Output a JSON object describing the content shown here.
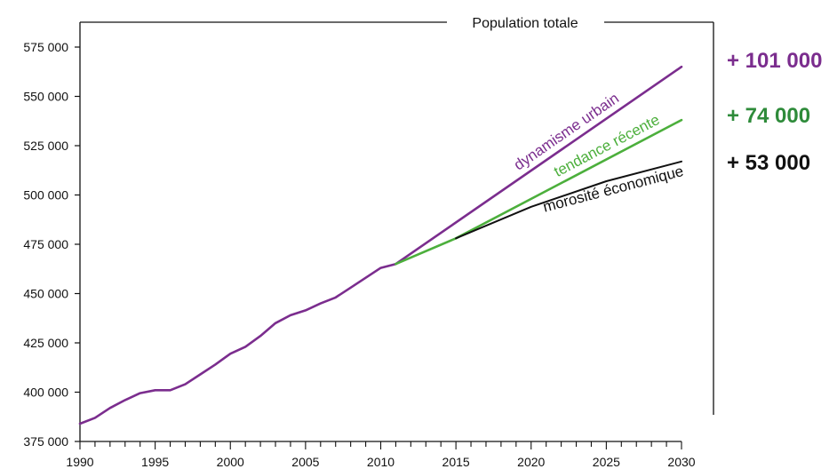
{
  "chart_data": {
    "type": "line",
    "title": "Population totale",
    "xlabel": "",
    "ylabel": "",
    "xlim": [
      1990,
      2030
    ],
    "ylim": [
      375000,
      575000
    ],
    "x_ticks": [
      "1990",
      "1995",
      "2000",
      "2005",
      "2010",
      "2015",
      "2020",
      "2025",
      "2030"
    ],
    "y_ticks": [
      "375 000",
      "400 000",
      "425 000",
      "450 000",
      "475 000",
      "500 000",
      "525 000",
      "550 000",
      "575 000"
    ],
    "x_tick_values": [
      1990,
      1995,
      2000,
      2005,
      2010,
      2015,
      2020,
      2025,
      2030
    ],
    "y_tick_values": [
      375000,
      400000,
      425000,
      450000,
      475000,
      500000,
      525000,
      550000,
      575000
    ],
    "grid": false,
    "series": [
      {
        "name": "",
        "color": "#7b2d8e",
        "x": [
          1990,
          1991,
          1992,
          1993,
          1994,
          1995,
          1996,
          1997,
          1998,
          1999,
          2000,
          2001,
          2002,
          2003,
          2004,
          2005,
          2006,
          2007,
          2008,
          2009,
          2010,
          2011
        ],
        "y": [
          384000,
          387000,
          392000,
          396000,
          399500,
          401000,
          401000,
          404000,
          409000,
          414000,
          419500,
          423000,
          428500,
          435000,
          439000,
          441500,
          445000,
          448000,
          453000,
          458000,
          463000,
          465000
        ]
      },
      {
        "name": "dynamisme urbain",
        "color": "#7b2d8e",
        "x": [
          2011,
          2030
        ],
        "y": [
          465000,
          565000
        ]
      },
      {
        "name": "tendance récente",
        "color": "#4caf3c",
        "x": [
          2011,
          2015,
          2030
        ],
        "y": [
          465000,
          478000,
          538000
        ]
      },
      {
        "name": "morosité économique",
        "color": "#111111",
        "x": [
          2015,
          2020,
          2025,
          2030
        ],
        "y": [
          478000,
          494000,
          507000,
          517000
        ]
      }
    ],
    "annotations": [
      {
        "text": "+ 101 000",
        "color": "#7b2d8e"
      },
      {
        "text": "+ 74 000",
        "color": "#2e8b3a"
      },
      {
        "text": "+ 53 000",
        "color": "#111111"
      }
    ]
  }
}
